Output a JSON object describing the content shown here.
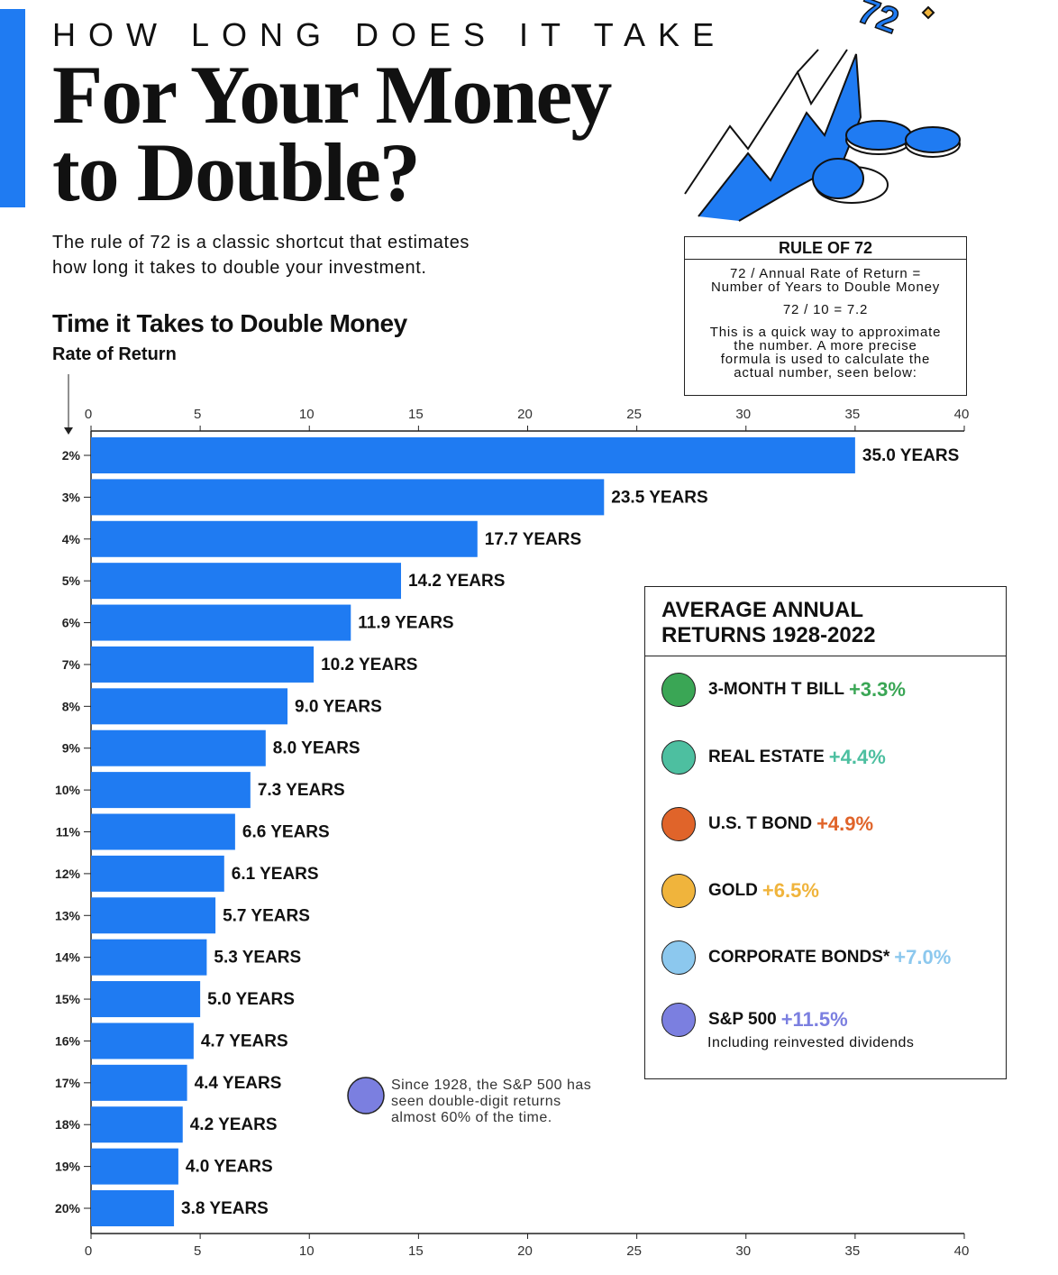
{
  "header": {
    "kicker": "HOW LONG DOES IT TAKE",
    "title_lines": [
      "For Your Money",
      "to Double?"
    ],
    "intro_lines": [
      "The rule of 72 is a classic shortcut that estimates",
      "how long it takes to double your investment."
    ],
    "illustration_label": "72"
  },
  "rule_box": {
    "title": "RULE OF 72",
    "lines": [
      "72 / Annual Rate of Return =",
      "Number of Years to Double Money",
      "72 / 10 = 7.2",
      "This is a quick way to approximate",
      "the number. A more precise",
      "formula is used to calculate the",
      "actual number, seen below:"
    ]
  },
  "returns_box": {
    "title_lines": [
      "AVERAGE ANNUAL",
      "RETURNS 1928-2022"
    ],
    "items": [
      {
        "name": "3-MONTH T BILL",
        "value": "+3.3%",
        "color": "#3aa655"
      },
      {
        "name": "REAL ESTATE",
        "value": "+4.4%",
        "color": "#4dbfa0"
      },
      {
        "name": "U.S. T BOND",
        "value": "+4.9%",
        "color": "#e0642a"
      },
      {
        "name": "GOLD",
        "value": "+6.5%",
        "color": "#f0b43c"
      },
      {
        "name": "CORPORATE BONDS*",
        "value": "+7.0%",
        "color": "#8cc8ee"
      },
      {
        "name": "S&P 500",
        "value": "+11.5%",
        "color": "#7b7fe0"
      }
    ],
    "note": "Including reinvested dividends"
  },
  "annotation": {
    "lines": [
      "Since 1928, the S&P 500 has",
      "seen double-digit returns",
      "almost 60% of the time."
    ]
  },
  "chart_data": {
    "type": "hbar",
    "title": "Time it Takes to Double Money",
    "ylabel": "Rate of Return",
    "categories": [
      "2%",
      "3%",
      "4%",
      "5%",
      "6%",
      "7%",
      "8%",
      "9%",
      "10%",
      "11%",
      "12%",
      "13%",
      "14%",
      "15%",
      "16%",
      "17%",
      "18%",
      "19%",
      "20%"
    ],
    "values": [
      35.0,
      23.5,
      17.7,
      14.2,
      11.9,
      10.2,
      9.0,
      8.0,
      7.3,
      6.6,
      6.1,
      5.7,
      5.3,
      5.0,
      4.7,
      4.4,
      4.2,
      4.0,
      3.8
    ],
    "value_labels": [
      "35.0 YEARS",
      "23.5 YEARS",
      "17.7 YEARS",
      "14.2 YEARS",
      "11.9 YEARS",
      "10.2 YEARS",
      "9.0 YEARS",
      "8.0 YEARS",
      "7.3 YEARS",
      "6.6 YEARS",
      "6.1 YEARS",
      "5.7 YEARS",
      "5.3 YEARS",
      "5.0 YEARS",
      "4.7 YEARS",
      "4.4 YEARS",
      "4.2 YEARS",
      "4.0 YEARS",
      "3.8 YEARS"
    ],
    "color": "#1f7bf2",
    "xlim": [
      0,
      40
    ],
    "xticks": [
      0,
      5,
      10,
      15,
      20,
      25,
      30,
      35,
      40
    ]
  }
}
